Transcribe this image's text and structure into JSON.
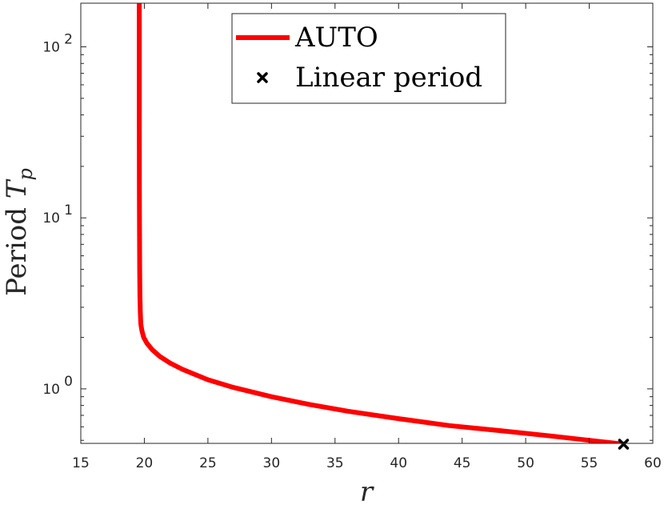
{
  "chart_data": {
    "type": "line",
    "xlabel": "r",
    "ylabel_text": "Period ",
    "ylabel_symbol": "T",
    "ylabel_subscript": "p",
    "xlim": [
      15,
      60
    ],
    "ylim": [
      0.48,
      180
    ],
    "yscale": "log",
    "xticks": [
      15,
      20,
      25,
      30,
      35,
      40,
      45,
      50,
      55,
      60
    ],
    "xtick_labels": [
      "15",
      "20",
      "25",
      "30",
      "35",
      "40",
      "45",
      "50",
      "55",
      "60"
    ],
    "yticks": [
      {
        "value": 1,
        "base": "10",
        "exp": "0"
      },
      {
        "value": 10,
        "base": "10",
        "exp": "1"
      },
      {
        "value": 100,
        "base": "10",
        "exp": "2"
      }
    ],
    "grid": false,
    "legend_position": "top",
    "series": [
      {
        "name": "AUTO",
        "color": "#ff0000",
        "style": "line",
        "x": [
          19.6,
          19.6,
          19.6,
          19.61,
          19.62,
          19.63,
          19.65,
          19.68,
          19.72,
          19.8,
          19.95,
          20.2,
          20.6,
          21.2,
          22,
          23,
          25,
          27,
          30,
          33,
          36,
          40,
          44,
          48,
          52,
          55,
          57.7
        ],
        "y": [
          180,
          100,
          40,
          15,
          8,
          5,
          3.5,
          2.8,
          2.4,
          2.2,
          2.0,
          1.85,
          1.7,
          1.55,
          1.42,
          1.3,
          1.13,
          1.02,
          0.9,
          0.81,
          0.74,
          0.67,
          0.61,
          0.57,
          0.53,
          0.5,
          0.475
        ]
      },
      {
        "name": "Linear period",
        "color": "#000000",
        "style": "marker",
        "x": [
          57.7
        ],
        "y": [
          0.475
        ]
      }
    ]
  }
}
